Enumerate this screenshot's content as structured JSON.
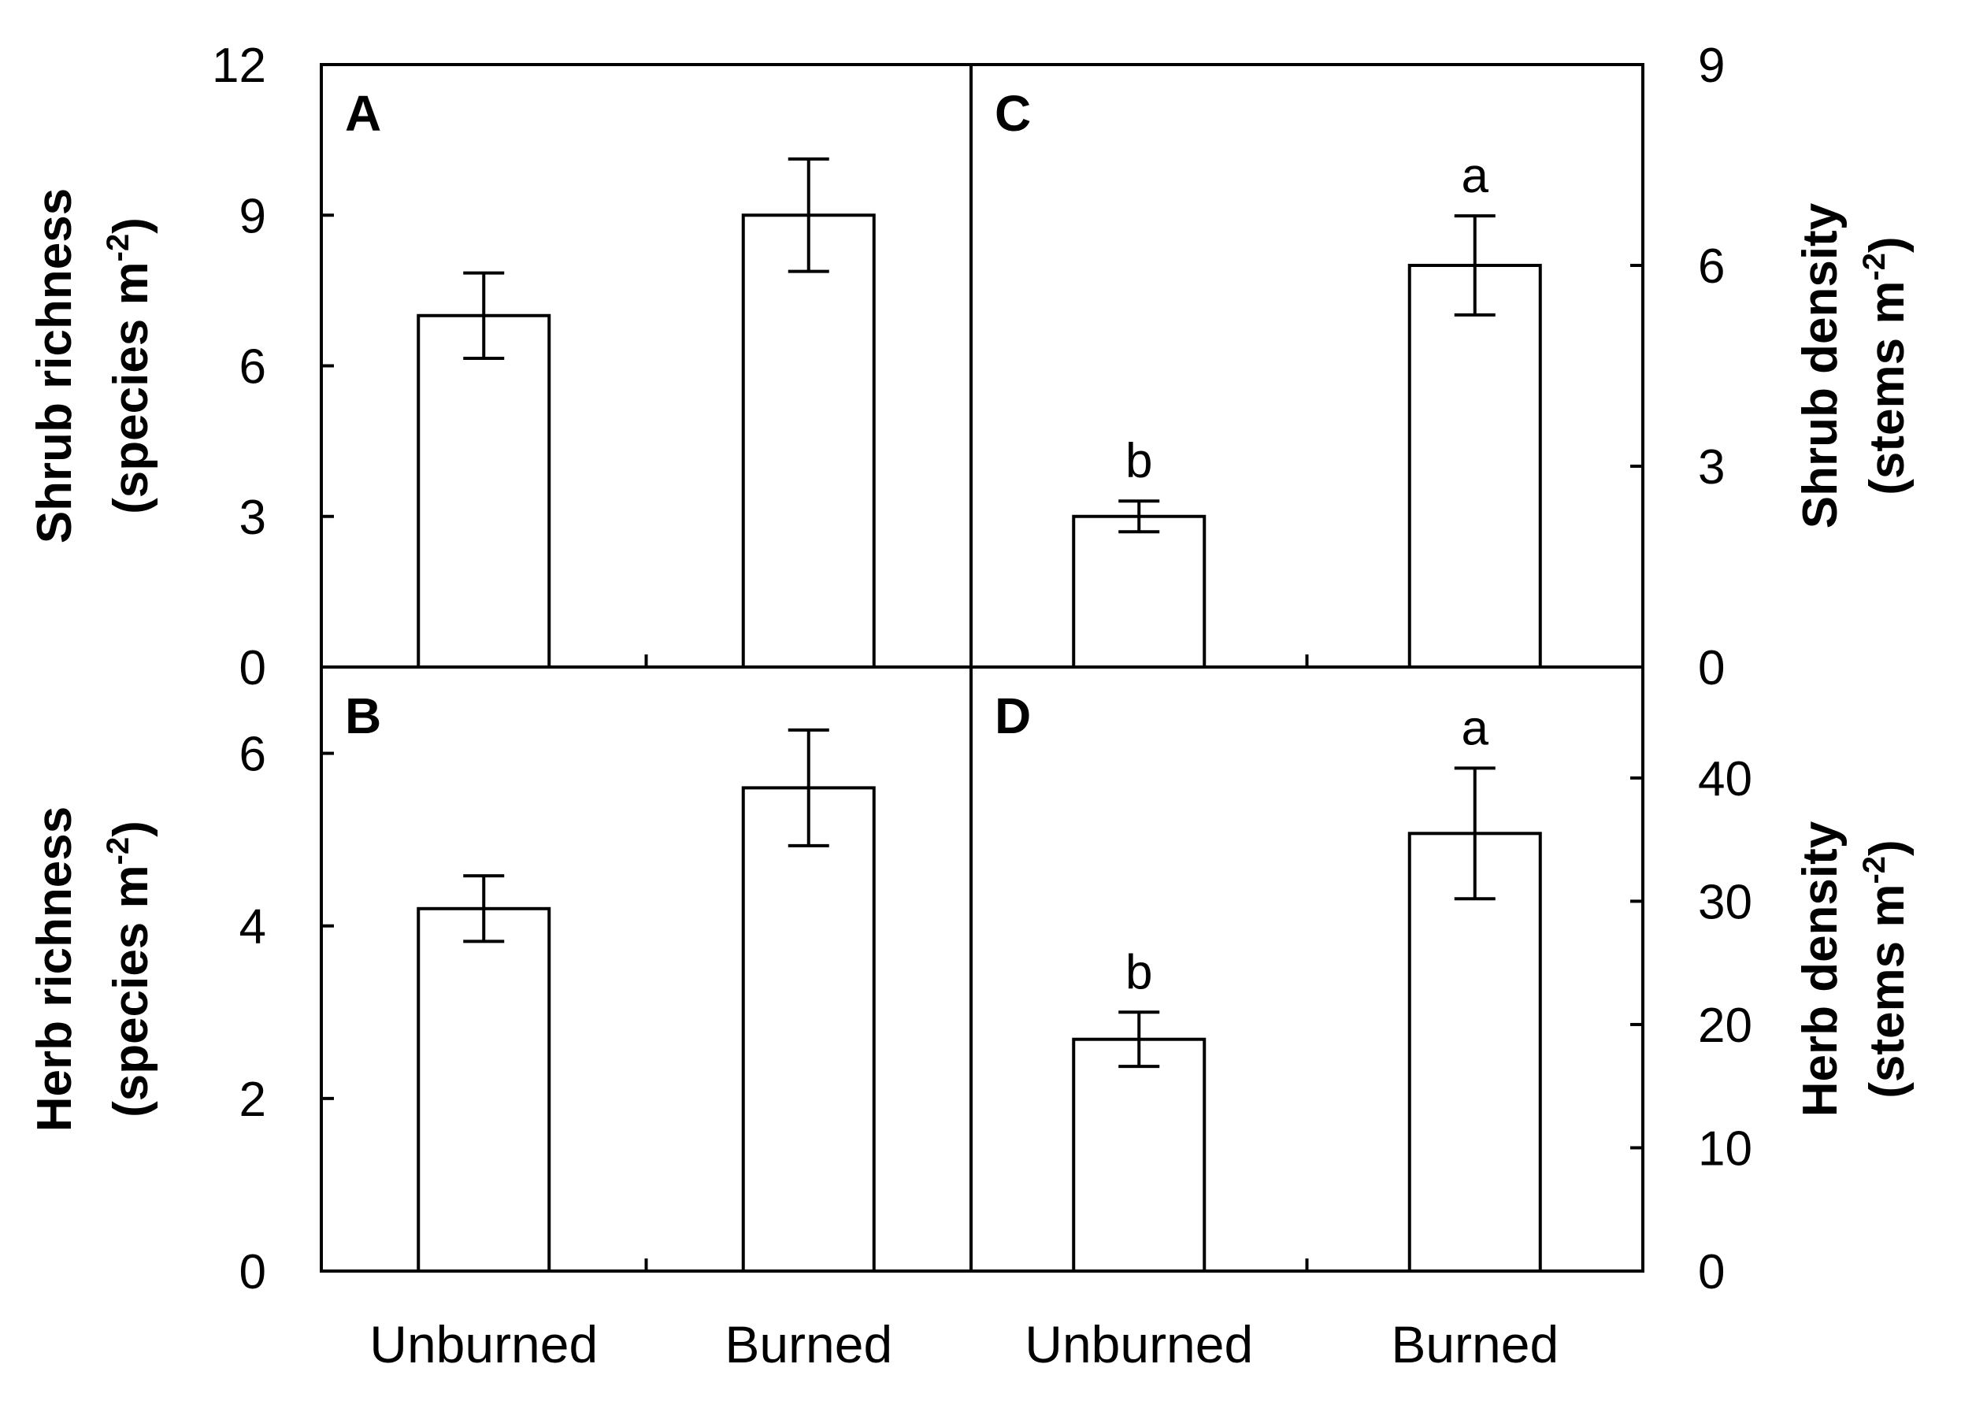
{
  "figure": {
    "categories": [
      "Unburned",
      "Burned"
    ]
  },
  "chart_data": [
    {
      "panel": "A",
      "type": "bar",
      "categories": [
        "Unburned",
        "Burned"
      ],
      "values": [
        7.0,
        9.0
      ],
      "errors": [
        0.85,
        1.12
      ],
      "ylabel": "Shrub richness",
      "ylabel_unit": "(species m",
      "ylabel_sup": "-2",
      "ylim": [
        0,
        12
      ],
      "yticks": [
        0,
        3,
        6,
        9,
        12
      ],
      "y_axis_side": "left",
      "significance_letters": []
    },
    {
      "panel": "B",
      "type": "bar",
      "categories": [
        "Unburned",
        "Burned"
      ],
      "values": [
        4.2,
        5.6
      ],
      "errors": [
        0.38,
        0.67
      ],
      "ylabel": "Herb richness",
      "ylabel_unit": "(species m",
      "ylabel_sup": "-2",
      "ylim": [
        0,
        7
      ],
      "yticks": [
        0,
        2,
        4,
        6
      ],
      "y_axis_side": "left",
      "significance_letters": []
    },
    {
      "panel": "C",
      "type": "bar",
      "categories": [
        "Unburned",
        "Burned"
      ],
      "values": [
        2.25,
        6.0
      ],
      "errors": [
        0.23,
        0.74
      ],
      "ylabel": "Shrub density",
      "ylabel_unit": "(stems m",
      "ylabel_sup": "-2",
      "ylim": [
        0,
        9
      ],
      "yticks": [
        0,
        3,
        6,
        9
      ],
      "y_axis_side": "right",
      "significance_letters": [
        "b",
        "a"
      ]
    },
    {
      "panel": "D",
      "type": "bar",
      "categories": [
        "Unburned",
        "Burned"
      ],
      "values": [
        18.8,
        35.5
      ],
      "errors": [
        2.2,
        5.3
      ],
      "ylabel": "Herb density",
      "ylabel_unit": "(stems m",
      "ylabel_sup": "-2",
      "ylim": [
        0,
        49
      ],
      "yticks": [
        0,
        10,
        20,
        30,
        40
      ],
      "y_axis_side": "right",
      "significance_letters": [
        "b",
        "a"
      ]
    }
  ]
}
